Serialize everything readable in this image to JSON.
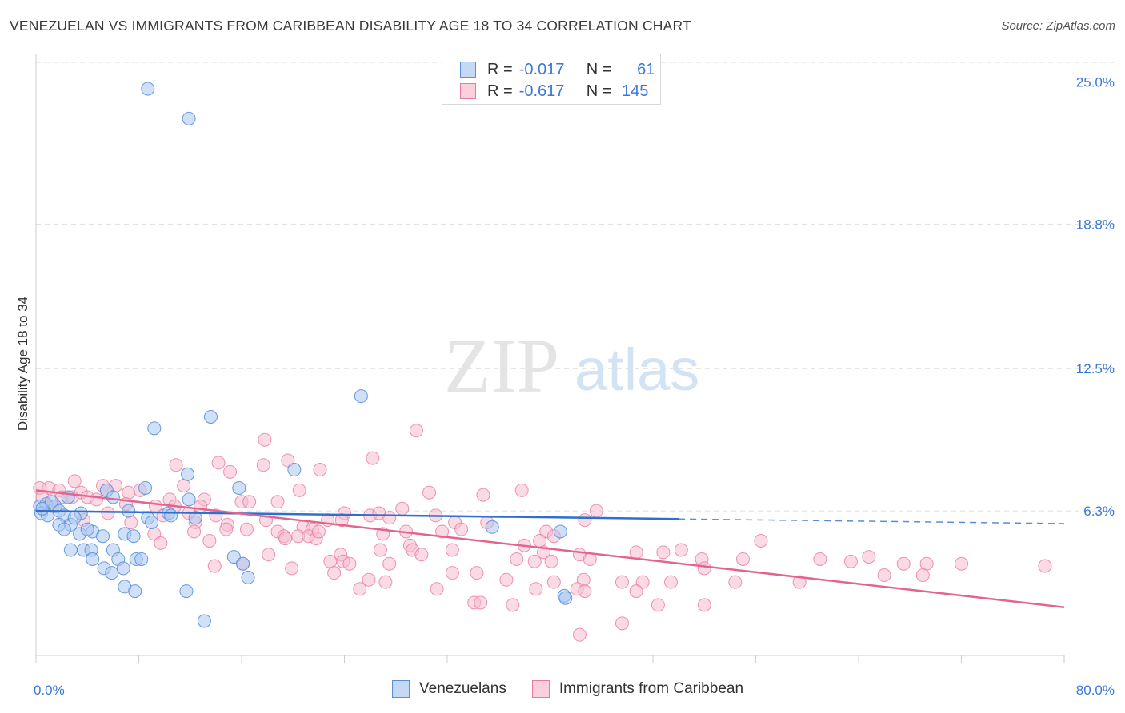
{
  "title": "VENEZUELAN VS IMMIGRANTS FROM CARIBBEAN DISABILITY AGE 18 TO 34 CORRELATION CHART",
  "source": "Source: ZipAtlas.com",
  "watermark": {
    "zip": "ZIP",
    "atlas": "atlas"
  },
  "legend": {
    "rows": [
      {
        "r_label": "R =",
        "r_value": "-0.017",
        "n_label": "N =",
        "n_value": "61"
      },
      {
        "r_label": "R =",
        "r_value": "-0.617",
        "n_label": "N =",
        "n_value": "145"
      }
    ]
  },
  "bottom_legend": [
    "Venezuelans",
    "Immigrants from Caribbean"
  ],
  "colors": {
    "blue_fill": "#a9c6f0",
    "blue_stroke": "#5b8fdc",
    "blue_line": "#2f6fcf",
    "pink_fill": "#f6bccd",
    "pink_stroke": "#e87a9c",
    "pink_line": "#e2658f",
    "axis_text": "#3b77d6",
    "grid": "#dddddd"
  },
  "chart_data": {
    "type": "scatter",
    "title": "VENEZUELAN VS IMMIGRANTS FROM CARIBBEAN DISABILITY AGE 18 TO 34 CORRELATION CHART",
    "xlabel": "",
    "ylabel": "Disability Age 18 to 34",
    "xlim": [
      0,
      80
    ],
    "ylim": [
      0,
      26.2
    ],
    "x_tick_labels": [
      "0.0%",
      "80.0%"
    ],
    "y_ticks": [
      6.3,
      12.5,
      18.8,
      25.0
    ],
    "y_tick_labels": [
      "6.3%",
      "12.5%",
      "18.8%",
      "25.0%"
    ],
    "grid": "horizontal dashed",
    "legend_placement": "top-center",
    "series": [
      {
        "name": "Venezuelans",
        "R": -0.017,
        "N": 61,
        "trend": {
          "x": [
            0,
            50
          ],
          "y": [
            6.3,
            5.95
          ],
          "dashed_to": [
            80,
            5.75
          ]
        },
        "points": [
          [
            8.7,
            24.7
          ],
          [
            11.9,
            23.4
          ],
          [
            25.3,
            11.3
          ],
          [
            13.6,
            10.4
          ],
          [
            9.2,
            9.9
          ],
          [
            20.1,
            8.1
          ],
          [
            11.8,
            7.9
          ],
          [
            8.5,
            7.3
          ],
          [
            15.8,
            7.3
          ],
          [
            5.5,
            7.2
          ],
          [
            2.5,
            6.9
          ],
          [
            6.0,
            6.9
          ],
          [
            11.9,
            6.8
          ],
          [
            0.3,
            6.5
          ],
          [
            0.8,
            6.6
          ],
          [
            1.5,
            6.5
          ],
          [
            0.4,
            6.2
          ],
          [
            0.9,
            6.1
          ],
          [
            1.8,
            6.3
          ],
          [
            2.2,
            6.1
          ],
          [
            3.5,
            6.2
          ],
          [
            8.7,
            6.0
          ],
          [
            10.3,
            6.2
          ],
          [
            10.5,
            6.1
          ],
          [
            12.4,
            6.0
          ],
          [
            1.8,
            5.7
          ],
          [
            2.7,
            5.7
          ],
          [
            2.2,
            5.5
          ],
          [
            3.4,
            5.3
          ],
          [
            4.4,
            5.4
          ],
          [
            5.2,
            5.2
          ],
          [
            6.9,
            5.3
          ],
          [
            7.6,
            5.2
          ],
          [
            35.5,
            5.6
          ],
          [
            40.8,
            5.4
          ],
          [
            2.7,
            4.6
          ],
          [
            3.7,
            4.6
          ],
          [
            4.3,
            4.6
          ],
          [
            6.0,
            4.6
          ],
          [
            4.4,
            4.2
          ],
          [
            6.4,
            4.2
          ],
          [
            7.8,
            4.2
          ],
          [
            8.2,
            4.2
          ],
          [
            15.4,
            4.3
          ],
          [
            16.1,
            4.0
          ],
          [
            5.3,
            3.8
          ],
          [
            6.8,
            3.8
          ],
          [
            5.9,
            3.6
          ],
          [
            16.5,
            3.4
          ],
          [
            6.9,
            3.0
          ],
          [
            7.7,
            2.8
          ],
          [
            11.7,
            2.8
          ],
          [
            41.1,
            2.6
          ],
          [
            41.2,
            2.5
          ],
          [
            13.1,
            1.5
          ],
          [
            0.5,
            6.4
          ],
          [
            1.2,
            6.7
          ],
          [
            4.0,
            5.5
          ],
          [
            9.0,
            5.8
          ],
          [
            3.0,
            6.0
          ],
          [
            7.2,
            6.3
          ]
        ]
      },
      {
        "name": "Immigrants from Caribbean",
        "R": -0.617,
        "N": 145,
        "trend": {
          "x": [
            0,
            80
          ],
          "y": [
            7.2,
            2.1
          ]
        },
        "points": [
          [
            29.6,
            9.8
          ],
          [
            17.8,
            9.4
          ],
          [
            26.2,
            8.6
          ],
          [
            19.6,
            8.5
          ],
          [
            14.2,
            8.4
          ],
          [
            17.7,
            8.3
          ],
          [
            10.9,
            8.3
          ],
          [
            22.1,
            8.1
          ],
          [
            15.1,
            8.0
          ],
          [
            3.0,
            7.6
          ],
          [
            1.0,
            7.3
          ],
          [
            0.3,
            7.3
          ],
          [
            1.8,
            7.2
          ],
          [
            3.5,
            7.1
          ],
          [
            5.2,
            7.4
          ],
          [
            6.2,
            7.4
          ],
          [
            5.5,
            7.2
          ],
          [
            7.2,
            7.1
          ],
          [
            8.1,
            7.2
          ],
          [
            11.5,
            7.4
          ],
          [
            20.5,
            7.2
          ],
          [
            30.6,
            7.1
          ],
          [
            34.8,
            7.0
          ],
          [
            37.8,
            7.2
          ],
          [
            2.0,
            6.9
          ],
          [
            2.8,
            6.9
          ],
          [
            4.0,
            6.9
          ],
          [
            4.7,
            6.8
          ],
          [
            10.4,
            6.8
          ],
          [
            13.1,
            6.8
          ],
          [
            16.0,
            6.7
          ],
          [
            16.6,
            6.7
          ],
          [
            18.8,
            6.7
          ],
          [
            0.5,
            6.9
          ],
          [
            1.3,
            6.5
          ],
          [
            7.0,
            6.6
          ],
          [
            9.3,
            6.5
          ],
          [
            10.8,
            6.5
          ],
          [
            11.9,
            6.2
          ],
          [
            12.8,
            6.5
          ],
          [
            14.0,
            6.1
          ],
          [
            5.6,
            6.2
          ],
          [
            9.9,
            6.1
          ],
          [
            24.0,
            6.2
          ],
          [
            26.0,
            6.1
          ],
          [
            26.7,
            6.2
          ],
          [
            27.5,
            6.0
          ],
          [
            28.5,
            6.4
          ],
          [
            31.1,
            6.1
          ],
          [
            43.6,
            6.3
          ],
          [
            3.7,
            5.9
          ],
          [
            7.4,
            5.8
          ],
          [
            12.4,
            5.8
          ],
          [
            14.9,
            5.7
          ],
          [
            16.4,
            5.5
          ],
          [
            17.9,
            5.9
          ],
          [
            18.8,
            5.4
          ],
          [
            20.8,
            5.6
          ],
          [
            21.5,
            5.5
          ],
          [
            22.7,
            5.9
          ],
          [
            23.8,
            5.9
          ],
          [
            32.6,
            5.8
          ],
          [
            33.1,
            5.5
          ],
          [
            35.1,
            5.8
          ],
          [
            42.7,
            5.9
          ],
          [
            9.2,
            5.3
          ],
          [
            12.3,
            5.4
          ],
          [
            14.8,
            5.5
          ],
          [
            19.3,
            5.2
          ],
          [
            20.4,
            5.2
          ],
          [
            21.2,
            5.2
          ],
          [
            21.8,
            5.1
          ],
          [
            22.0,
            5.4
          ],
          [
            27.0,
            5.3
          ],
          [
            28.8,
            5.4
          ],
          [
            31.6,
            5.4
          ],
          [
            39.7,
            5.4
          ],
          [
            40.3,
            5.2
          ],
          [
            9.7,
            4.9
          ],
          [
            13.5,
            5.0
          ],
          [
            29.1,
            4.8
          ],
          [
            32.4,
            4.6
          ],
          [
            38.0,
            4.8
          ],
          [
            39.2,
            5.0
          ],
          [
            56.4,
            5.0
          ],
          [
            18.1,
            4.4
          ],
          [
            23.7,
            4.4
          ],
          [
            26.8,
            4.6
          ],
          [
            29.3,
            4.6
          ],
          [
            30.0,
            4.4
          ],
          [
            39.5,
            4.5
          ],
          [
            42.3,
            4.4
          ],
          [
            46.7,
            4.5
          ],
          [
            48.8,
            4.5
          ],
          [
            50.2,
            4.6
          ],
          [
            64.8,
            4.3
          ],
          [
            69.3,
            4.0
          ],
          [
            72.0,
            4.0
          ],
          [
            78.5,
            3.9
          ],
          [
            16.1,
            4.0
          ],
          [
            22.9,
            4.1
          ],
          [
            23.9,
            4.1
          ],
          [
            24.4,
            4.0
          ],
          [
            27.5,
            4.0
          ],
          [
            37.4,
            4.2
          ],
          [
            38.8,
            4.1
          ],
          [
            40.1,
            4.1
          ],
          [
            43.1,
            4.2
          ],
          [
            51.8,
            4.2
          ],
          [
            55.0,
            4.2
          ],
          [
            61.0,
            4.2
          ],
          [
            63.4,
            4.1
          ],
          [
            67.5,
            4.0
          ],
          [
            52.0,
            3.8
          ],
          [
            66.0,
            3.5
          ],
          [
            69.0,
            3.5
          ],
          [
            13.9,
            3.9
          ],
          [
            19.9,
            3.8
          ],
          [
            23.2,
            3.6
          ],
          [
            25.9,
            3.3
          ],
          [
            27.2,
            3.2
          ],
          [
            32.4,
            3.6
          ],
          [
            34.3,
            3.6
          ],
          [
            36.6,
            3.3
          ],
          [
            40.3,
            3.2
          ],
          [
            42.6,
            3.3
          ],
          [
            45.6,
            3.2
          ],
          [
            47.2,
            3.2
          ],
          [
            49.4,
            3.2
          ],
          [
            54.4,
            3.2
          ],
          [
            59.4,
            3.2
          ],
          [
            25.2,
            2.9
          ],
          [
            31.2,
            2.9
          ],
          [
            38.9,
            2.9
          ],
          [
            42.1,
            2.9
          ],
          [
            46.7,
            2.8
          ],
          [
            34.1,
            2.3
          ],
          [
            34.6,
            2.3
          ],
          [
            37.1,
            2.2
          ],
          [
            42.7,
            2.8
          ],
          [
            48.4,
            2.2
          ],
          [
            52.0,
            2.2
          ],
          [
            45.6,
            1.4
          ],
          [
            42.3,
            0.9
          ],
          [
            19.4,
            5.1
          ]
        ]
      }
    ]
  }
}
